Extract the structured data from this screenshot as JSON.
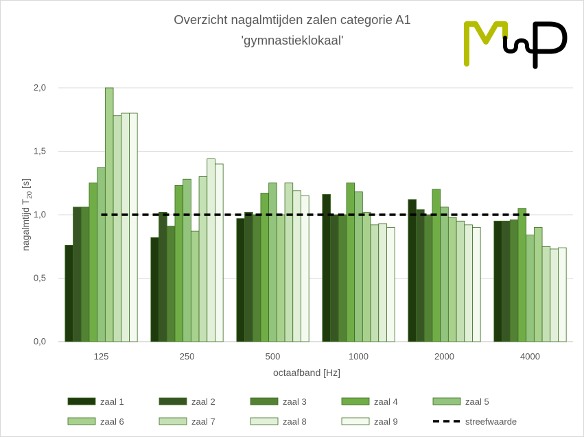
{
  "chart_data": {
    "type": "bar",
    "title": [
      "Overzicht nagalmtijden zalen categorie A1",
      "'gymnastieklokaal'"
    ],
    "xlabel": "octaafband [Hz]",
    "ylabel": {
      "main": "nagalmtijd T",
      "sub": "20",
      "unit": " [s]"
    },
    "categories": [
      "125",
      "250",
      "500",
      "1000",
      "2000",
      "4000"
    ],
    "ylim": [
      0,
      2
    ],
    "yticks": [
      "0,0",
      "0,5",
      "1,0",
      "1,5",
      "2,0"
    ],
    "ytick_values": [
      0,
      0.5,
      1.0,
      1.5,
      2.0
    ],
    "grid": true,
    "legend_position": "bottom",
    "series": [
      {
        "name": "zaal 1",
        "color": "#1f3b0d",
        "values": [
          0.76,
          0.82,
          0.97,
          1.16,
          1.12,
          0.95
        ]
      },
      {
        "name": "zaal 2",
        "color": "#375623",
        "values": [
          1.06,
          1.02,
          1.02,
          1.0,
          1.04,
          0.95
        ]
      },
      {
        "name": "zaal 3",
        "color": "#548235",
        "values": [
          1.06,
          0.91,
          1.0,
          1.0,
          1.0,
          0.96
        ]
      },
      {
        "name": "zaal 4",
        "color": "#70ad47",
        "values": [
          1.25,
          1.23,
          1.17,
          1.25,
          1.2,
          1.05
        ]
      },
      {
        "name": "zaal 5",
        "color": "#93c47d",
        "values": [
          1.37,
          1.28,
          1.25,
          1.18,
          1.06,
          0.84
        ]
      },
      {
        "name": "zaal 6",
        "color": "#a9d18e",
        "values": [
          2.0,
          0.87,
          1.0,
          1.02,
          0.98,
          0.9
        ]
      },
      {
        "name": "zaal 7",
        "color": "#c5e0b4",
        "values": [
          1.78,
          1.3,
          1.25,
          0.92,
          0.95,
          0.75
        ]
      },
      {
        "name": "zaal 8",
        "color": "#e2f0d9",
        "values": [
          1.8,
          1.44,
          1.19,
          0.93,
          0.92,
          0.73
        ]
      },
      {
        "name": "zaal 9",
        "color": "#f4faef",
        "values": [
          1.8,
          1.4,
          1.15,
          0.9,
          0.9,
          0.74
        ]
      }
    ],
    "reference_line": {
      "name": "streefwaarde",
      "value": 1.0,
      "color": "#000000",
      "style": "dashed"
    }
  },
  "logo": {
    "name": "logo",
    "colors": [
      "#b5bd00",
      "#000000"
    ]
  }
}
